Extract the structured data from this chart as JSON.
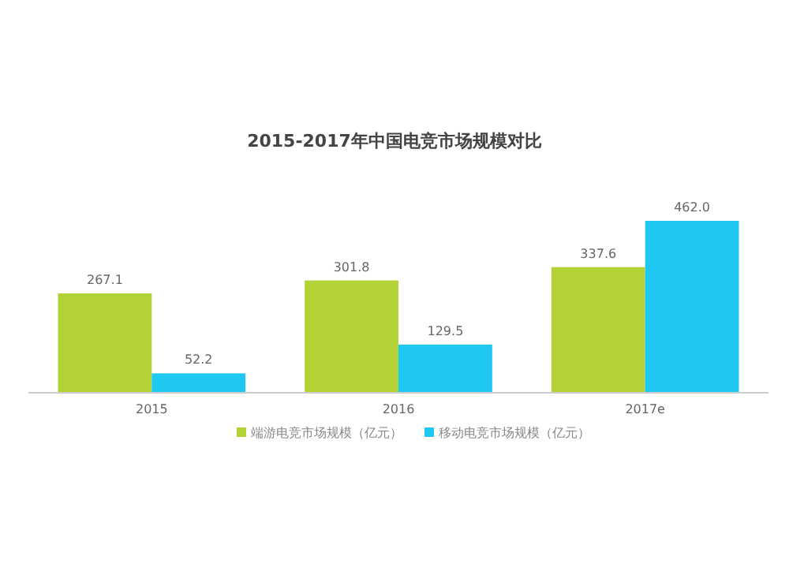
{
  "chart_data": {
    "type": "bar",
    "title": "2015-2017年中国电竞市场规模对比",
    "categories": [
      "2015",
      "2016",
      "2017e"
    ],
    "series": [
      {
        "name": "端游电竞市场规模（亿元）",
        "color": "#b2d235",
        "values": [
          267.1,
          301.8,
          337.6
        ],
        "value_labels": [
          "267.1",
          "301.8",
          "337.6"
        ]
      },
      {
        "name": "移动电竞市场规模（亿元）",
        "color": "#1ec8f0",
        "values": [
          52.2,
          129.5,
          462.0
        ],
        "value_labels": [
          "52.2",
          "129.5",
          "462.0"
        ]
      }
    ],
    "legend": "bottom"
  }
}
